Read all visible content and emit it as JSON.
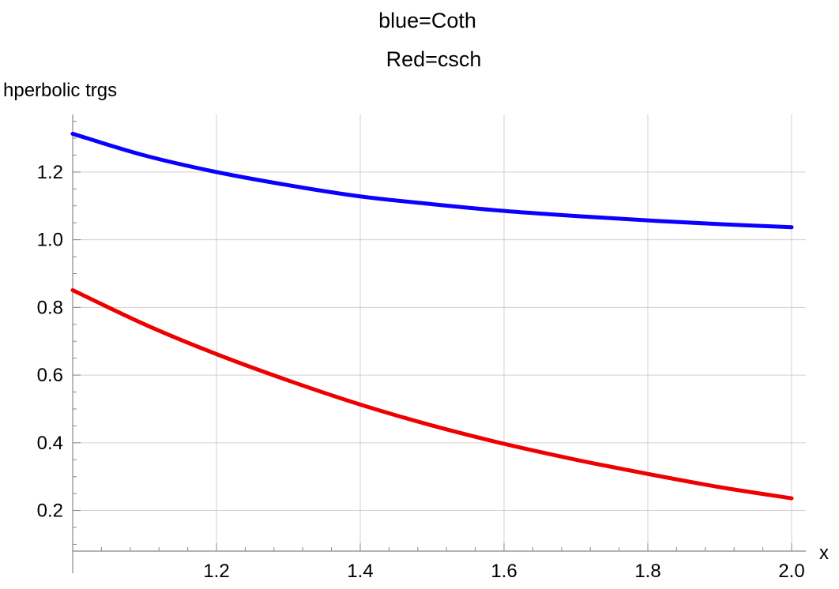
{
  "chart_data": {
    "type": "line",
    "title_lines": [
      "blue=Coth",
      "Red=csch"
    ],
    "xlabel": "x",
    "ylabel": "hperbolic trgs",
    "xlim": [
      1.0,
      2.0
    ],
    "ylim": [
      0.08,
      1.37
    ],
    "x_ticks": [
      {
        "value": 1.2,
        "label": "1.2"
      },
      {
        "value": 1.4,
        "label": "1.4"
      },
      {
        "value": 1.6,
        "label": "1.6"
      },
      {
        "value": 1.8,
        "label": "1.8"
      },
      {
        "value": 2.0,
        "label": "2.0"
      }
    ],
    "y_ticks": [
      {
        "value": 0.2,
        "label": "0.2"
      },
      {
        "value": 0.4,
        "label": "0.4"
      },
      {
        "value": 0.6,
        "label": "0.6"
      },
      {
        "value": 0.8,
        "label": "0.8"
      },
      {
        "value": 1.0,
        "label": "1.0"
      },
      {
        "value": 1.2,
        "label": "1.2"
      }
    ],
    "grid": true,
    "x": [
      1.0,
      1.1,
      1.2,
      1.3,
      1.4,
      1.5,
      1.6,
      1.7,
      1.8,
      1.9,
      2.0
    ],
    "series": [
      {
        "color": "#0a00ff",
        "values": [
          1.313,
          1.249,
          1.2,
          1.161,
          1.128,
          1.105,
          1.085,
          1.07,
          1.057,
          1.046,
          1.037
        ]
      },
      {
        "color": "#ee0000",
        "values": [
          0.851,
          0.75,
          0.662,
          0.584,
          0.513,
          0.451,
          0.397,
          0.35,
          0.308,
          0.269,
          0.236
        ]
      }
    ]
  }
}
